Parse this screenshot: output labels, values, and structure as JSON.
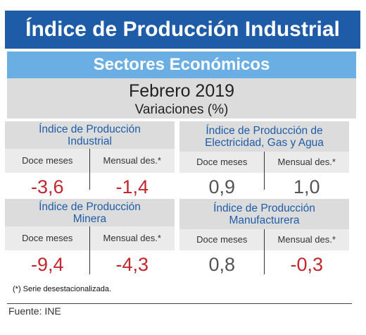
{
  "header": {
    "title": "Índice de Producción Industrial",
    "subtitle": "Sectores Económicos",
    "period": "Febrero 2019",
    "unit": "Variaciones (%)"
  },
  "columns": {
    "annual": "Doce meses",
    "monthly": "Mensual des.*"
  },
  "indices": [
    {
      "name": "Índice de Producción\nIndustrial",
      "annual": "-3,6",
      "monthly": "-1,4"
    },
    {
      "name": "Índice de Producción de\nElectricidad, Gas y Agua",
      "annual": "0,9",
      "monthly": "1,0"
    },
    {
      "name": "Índice de Producción\nMinera",
      "annual": "-9,4",
      "monthly": "-4,3"
    },
    {
      "name": "Índice de Producción\nManufacturera",
      "annual": "0,8",
      "monthly": "-0,3"
    }
  ],
  "colors": {
    "title_band": "#1f5ca8",
    "subtitle_band": "#6aaee3",
    "negative": "#c1272d",
    "neutral": "#555555"
  },
  "footnote": "(*)  Serie desestacionalizada.",
  "source": "Fuente: INE"
}
